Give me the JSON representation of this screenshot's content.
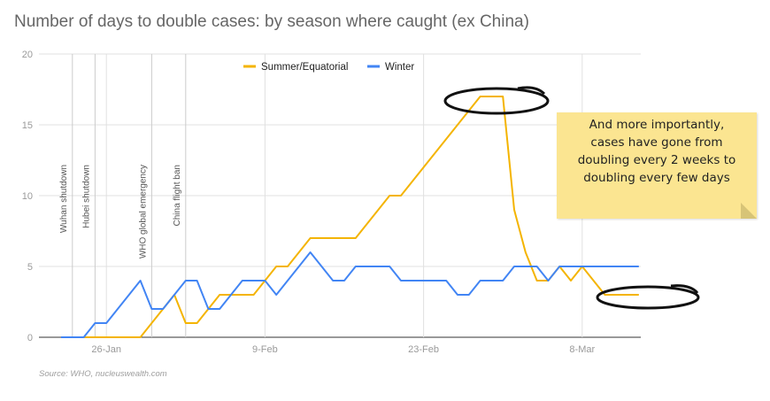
{
  "title": "Number of days to double cases: by season where caught (ex China)",
  "source": "Source: WHO, nucleuswealth.com",
  "note": "And more importantly,\ncases have gone from\ndoubling every 2 weeks to\ndoubling every few days",
  "colors": {
    "summer": "#f4b400",
    "winter": "#4285f4",
    "grid": "#e0e0e0",
    "event_line": "#cccccc",
    "note_bg": "#fbe591"
  },
  "chart_data": {
    "type": "line",
    "title": "Number of days to double cases: by season where caught (ex China)",
    "x_type": "date",
    "x": [
      "2020-01-22",
      "2020-01-23",
      "2020-01-24",
      "2020-01-25",
      "2020-01-26",
      "2020-01-27",
      "2020-01-28",
      "2020-01-29",
      "2020-01-30",
      "2020-01-31",
      "2020-02-01",
      "2020-02-02",
      "2020-02-03",
      "2020-02-04",
      "2020-02-05",
      "2020-02-06",
      "2020-02-07",
      "2020-02-08",
      "2020-02-09",
      "2020-02-10",
      "2020-02-11",
      "2020-02-12",
      "2020-02-13",
      "2020-02-14",
      "2020-02-15",
      "2020-02-16",
      "2020-02-17",
      "2020-02-18",
      "2020-02-19",
      "2020-02-20",
      "2020-02-21",
      "2020-02-22",
      "2020-02-23",
      "2020-02-24",
      "2020-02-25",
      "2020-02-26",
      "2020-02-27",
      "2020-02-28",
      "2020-02-29",
      "2020-03-01",
      "2020-03-02",
      "2020-03-03",
      "2020-03-04",
      "2020-03-05",
      "2020-03-06",
      "2020-03-07",
      "2020-03-08",
      "2020-03-09",
      "2020-03-10",
      "2020-03-11",
      "2020-03-12",
      "2020-03-13"
    ],
    "series": [
      {
        "name": "Summer/Equatorial",
        "color": "#f4b400",
        "values": [
          0,
          0,
          0,
          0,
          0,
          0,
          0,
          0,
          1,
          2,
          3,
          1,
          1,
          2,
          3,
          3,
          3,
          3,
          4,
          5,
          5,
          6,
          7,
          7,
          7,
          7,
          7,
          8,
          9,
          10,
          10,
          11,
          12,
          13,
          14,
          15,
          16,
          17,
          17,
          17,
          9,
          6,
          4,
          4,
          5,
          4,
          5,
          4,
          3,
          3,
          3,
          3
        ]
      },
      {
        "name": "Winter",
        "color": "#4285f4",
        "values": [
          0,
          0,
          0,
          1,
          1,
          2,
          3,
          4,
          2,
          2,
          3,
          4,
          4,
          2,
          2,
          3,
          4,
          4,
          4,
          3,
          4,
          5,
          6,
          5,
          4,
          4,
          5,
          5,
          5,
          5,
          4,
          4,
          4,
          4,
          4,
          3,
          3,
          4,
          4,
          4,
          5,
          5,
          5,
          4,
          5,
          5,
          5,
          5,
          5,
          5,
          5,
          5
        ]
      }
    ],
    "x_ticks": [
      "26-Jan",
      "9-Feb",
      "23-Feb",
      "8-Mar"
    ],
    "x_tick_dates": [
      "2020-01-26",
      "2020-02-09",
      "2020-02-23",
      "2020-03-08"
    ],
    "y_ticks": [
      0,
      5,
      10,
      15,
      20
    ],
    "ylim": [
      0,
      20
    ],
    "grid": true,
    "legend_position": "top",
    "events": [
      {
        "date": "2020-01-23",
        "label": "Wuhan shutdown"
      },
      {
        "date": "2020-01-25",
        "label": "Hubei shutdown"
      },
      {
        "date": "2020-01-30",
        "label": "WHO global emergency"
      },
      {
        "date": "2020-02-02",
        "label": "China flight ban"
      }
    ]
  }
}
